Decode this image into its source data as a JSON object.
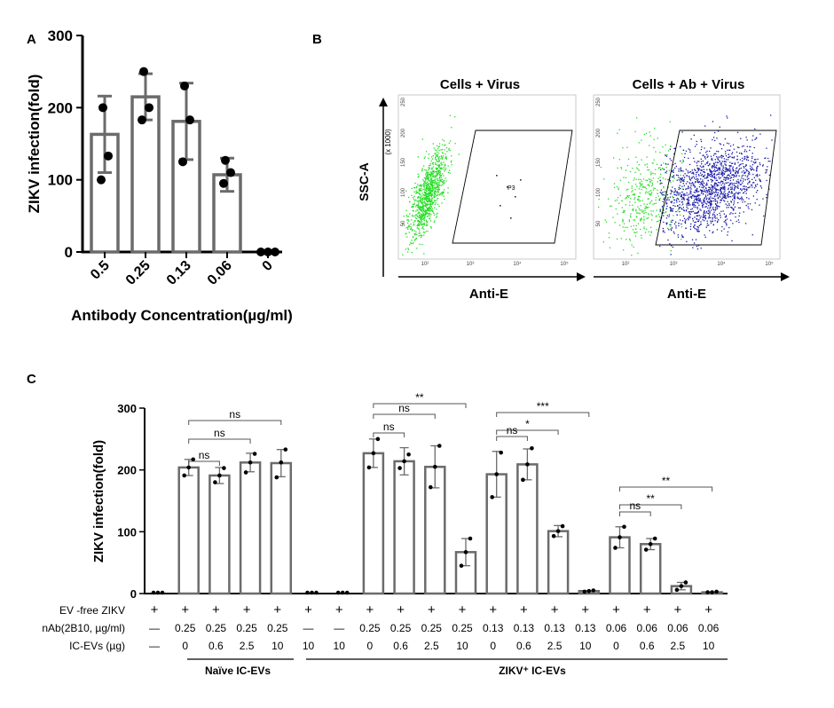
{
  "panel_labels": {
    "a": "A",
    "b": "B",
    "c": "C"
  },
  "colors": {
    "bar_stroke": "#6b6b6b",
    "points": "#000000",
    "gate": "#000000",
    "green_population": "#22dd22",
    "blue_population": "#1a1aa8"
  },
  "panel_a": {
    "ylabel": "ZIKV infection(fold)",
    "xlabel": "Antibody Concentration(µg/ml)",
    "yticks": [
      "0",
      "100",
      "200",
      "300"
    ]
  },
  "panel_b": {
    "plot1_title": "Cells + Virus",
    "plot2_title": "Cells + Ab + Virus",
    "ylabel": "SSC-A",
    "ylabel_scale": "(x 1000)",
    "xlabel": "Anti-E",
    "gate_label": "P3",
    "yticks": [
      "50",
      "100",
      "150",
      "200",
      "250"
    ],
    "xticks": [
      "10²",
      "10³",
      "10⁴",
      "10⁵"
    ]
  },
  "panel_c": {
    "ylabel": "ZIKV infection(fold)",
    "yticks": [
      "0",
      "100",
      "200",
      "300"
    ],
    "row_labels": [
      "EV -free ZIKV",
      "nAb(2B10, µg/ml)",
      "IC-EVs (µg)"
    ],
    "plus": "+",
    "dash": "—",
    "group_labels": [
      "Naïve IC-EVs",
      "ZIKV⁺ IC-EVs"
    ],
    "nab_row": [
      "—",
      "0.25",
      "0.25",
      "0.25",
      "0.25",
      "—",
      "—",
      "0.25",
      "0.25",
      "0.25",
      "0.25",
      "0.13",
      "0.13",
      "0.13",
      "0.13",
      "0.06",
      "0.06",
      "0.06",
      "0.06"
    ],
    "ev_row": [
      "—",
      "0",
      "0.6",
      "2.5",
      "10",
      "10",
      "10",
      "0",
      "0.6",
      "2.5",
      "10",
      "0",
      "0.6",
      "2.5",
      "10",
      "0",
      "0.6",
      "2.5",
      "10"
    ],
    "sig_labels": [
      "ns",
      "ns",
      "ns",
      "**",
      "ns",
      "ns",
      "***",
      "*",
      "ns",
      "**",
      "**",
      "ns"
    ]
  },
  "chart_data": [
    {
      "type": "bar",
      "panel": "A",
      "categories": [
        "0.5",
        "0.25",
        "0.13",
        "0.06",
        "0"
      ],
      "values": [
        163,
        215,
        181,
        107,
        0
      ],
      "errors": [
        53,
        32,
        53,
        23,
        0
      ],
      "points": [
        [
          100,
          133,
          200
        ],
        [
          183,
          200,
          250
        ],
        [
          125,
          183,
          230
        ],
        [
          95,
          110,
          127
        ],
        [
          0,
          0,
          0
        ]
      ],
      "xlabel": "Antibody Concentration(µg/ml)",
      "ylabel": "ZIKV infection(fold)",
      "ylim": [
        0,
        300
      ],
      "grid": false
    },
    {
      "type": "scatter",
      "panel": "B",
      "plots": [
        {
          "title": "Cells + Virus",
          "gate": "P3",
          "populations": [
            "green"
          ]
        },
        {
          "title": "Cells + Ab + Virus",
          "populations": [
            "green",
            "blue"
          ]
        }
      ],
      "xlabel": "Anti-E",
      "ylabel": "SSC-A",
      "x_scale": "log",
      "xticks": [
        "10²",
        "10³",
        "10⁴",
        "10⁵"
      ],
      "yticks": [
        "50",
        "100",
        "150",
        "200",
        "250"
      ]
    },
    {
      "type": "bar",
      "panel": "C",
      "n_categories": 19,
      "values": [
        0,
        204,
        191,
        212,
        211,
        0,
        0,
        227,
        214,
        205,
        67,
        193,
        209,
        101,
        4,
        91,
        80,
        12,
        2
      ],
      "errors": [
        0,
        13,
        13,
        15,
        22,
        0,
        0,
        23,
        22,
        34,
        22,
        37,
        25,
        9,
        1,
        17,
        9,
        6,
        1
      ],
      "points": [
        [
          0,
          0,
          0
        ],
        [
          191,
          204,
          217
        ],
        [
          180,
          191,
          203
        ],
        [
          196,
          212,
          226
        ],
        [
          188,
          212,
          233
        ],
        [
          0,
          0,
          0
        ],
        [
          0,
          0,
          0
        ],
        [
          204,
          227,
          250
        ],
        [
          203,
          214,
          225
        ],
        [
          172,
          205,
          239
        ],
        [
          45,
          67,
          89
        ],
        [
          156,
          193,
          228
        ],
        [
          184,
          209,
          235
        ],
        [
          93,
          101,
          109
        ],
        [
          3,
          4,
          5
        ],
        [
          74,
          91,
          108
        ],
        [
          71,
          80,
          89
        ],
        [
          6,
          12,
          18
        ],
        [
          2,
          2,
          3
        ]
      ],
      "ylabel": "ZIKV infection(fold)",
      "ylim": [
        0,
        300
      ],
      "significance": [
        {
          "from": 1,
          "to": 2,
          "label": "ns"
        },
        {
          "from": 1,
          "to": 3,
          "label": "ns"
        },
        {
          "from": 1,
          "to": 4,
          "label": "ns"
        },
        {
          "from": 7,
          "to": 10,
          "label": "**"
        },
        {
          "from": 7,
          "to": 9,
          "label": "ns"
        },
        {
          "from": 7,
          "to": 8,
          "label": "ns"
        },
        {
          "from": 11,
          "to": 14,
          "label": "***"
        },
        {
          "from": 11,
          "to": 13,
          "label": "*"
        },
        {
          "from": 11,
          "to": 12,
          "label": "ns"
        },
        {
          "from": 15,
          "to": 18,
          "label": "**"
        },
        {
          "from": 15,
          "to": 17,
          "label": "**"
        },
        {
          "from": 15,
          "to": 16,
          "label": "ns"
        }
      ]
    }
  ]
}
